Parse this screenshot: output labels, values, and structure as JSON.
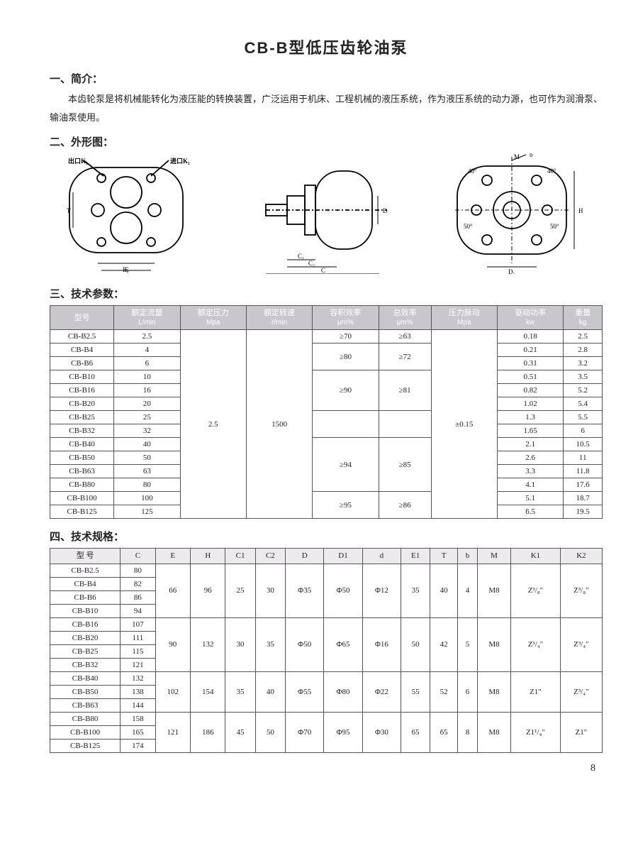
{
  "title": "CB-B型低压齿轮油泵",
  "section1": {
    "heading": "一、简介：",
    "text": "本齿轮泵是将机械能转化为液压能的转换装置，广泛运用于机床、工程机械的液压系统，作为液压系统的动力源，也可作为润滑泵、输油泵使用。"
  },
  "section2": {
    "heading": "二、外形图：",
    "labels": {
      "outlet": "出口K₂",
      "inlet": "进口K₁",
      "dims": [
        "E₁",
        "E",
        "D",
        "C₁",
        "C₂",
        "C",
        "M",
        "b",
        "D₁",
        "H",
        "T"
      ]
    }
  },
  "section3": {
    "heading": "三、技术参数：",
    "columns": [
      {
        "label": "型号",
        "sub": ""
      },
      {
        "label": "额定流量",
        "sub": "L/min"
      },
      {
        "label": "额定压力",
        "sub": "Mpa"
      },
      {
        "label": "额定转速",
        "sub": "r/min"
      },
      {
        "label": "容积效率",
        "sub": "μm%"
      },
      {
        "label": "总效率",
        "sub": "μm%"
      },
      {
        "label": "压力脉动",
        "sub": "Mpa"
      },
      {
        "label": "驱动功率",
        "sub": "kw"
      },
      {
        "label": "重量",
        "sub": "kg"
      }
    ],
    "pressure": "2.5",
    "speed": "1500",
    "pulse": "±0.15",
    "rows": [
      {
        "model": "CB-B2.5",
        "flow": "2.5",
        "vol": "≥70",
        "tot": "≥63",
        "pow": "0.18",
        "wt": "2.5",
        "volspan": 1,
        "totspan": 1
      },
      {
        "model": "CB-B4",
        "flow": "4",
        "vol": "≥80",
        "tot": "≥72",
        "pow": "0.21",
        "wt": "2.8",
        "volspan": 2,
        "totspan": 2
      },
      {
        "model": "CB-B6",
        "flow": "6",
        "pow": "0.31",
        "wt": "3.2"
      },
      {
        "model": "CB-B10",
        "flow": "10",
        "vol": "≥90",
        "tot": "≥81",
        "pow": "0.51",
        "wt": "3.5",
        "volspan": 3,
        "totspan": 3
      },
      {
        "model": "CB-B16",
        "flow": "16",
        "pow": "0.82",
        "wt": "5.2"
      },
      {
        "model": "CB-B20",
        "flow": "20",
        "pow": "1.02",
        "wt": "5.4"
      },
      {
        "model": "CB-B25",
        "flow": "25",
        "vol": "",
        "tot": "",
        "pow": "1.3",
        "wt": "5.5",
        "volspan": 2,
        "totspan": 2,
        "empty": true
      },
      {
        "model": "CB-B32",
        "flow": "32",
        "pow": "1.65",
        "wt": "6"
      },
      {
        "model": "CB-B40",
        "flow": "40",
        "vol": "≥94",
        "tot": "≥85",
        "pow": "2.1",
        "wt": "10.5",
        "volspan": 4,
        "totspan": 4
      },
      {
        "model": "CB-B50",
        "flow": "50",
        "pow": "2.6",
        "wt": "11"
      },
      {
        "model": "CB-B63",
        "flow": "63",
        "pow": "3.3",
        "wt": "11.8"
      },
      {
        "model": "CB-B80",
        "flow": "80",
        "pow": "4.1",
        "wt": "17.6"
      },
      {
        "model": "CB-B100",
        "flow": "100",
        "vol": "≥95",
        "tot": "≥86",
        "pow": "5.1",
        "wt": "18.7",
        "volspan": 2,
        "totspan": 2
      },
      {
        "model": "CB-B125",
        "flow": "125",
        "pow": "6.5",
        "wt": "19.5"
      }
    ]
  },
  "section4": {
    "heading": "四、技术规格：",
    "columns": [
      "型 号",
      "C",
      "E",
      "H",
      "C1",
      "C2",
      "D",
      "D1",
      "d",
      "E1",
      "T",
      "b",
      "M",
      "K1",
      "K2"
    ],
    "groups": [
      {
        "shared": {
          "E": "66",
          "H": "96",
          "C1": "25",
          "C2": "30",
          "D": "Φ35",
          "D1": "Φ50",
          "d": "Φ12",
          "E1": "35",
          "T": "40",
          "b": "4",
          "M": "M8",
          "K1": "Z³/₈″",
          "K2": "Z³/₈″"
        },
        "rows": [
          {
            "model": "CB-B2.5",
            "C": "80"
          },
          {
            "model": "CB-B4",
            "C": "82"
          },
          {
            "model": "CB-B6",
            "C": "86"
          },
          {
            "model": "CB-B10",
            "C": "94"
          }
        ]
      },
      {
        "shared": {
          "E": "90",
          "H": "132",
          "C1": "30",
          "C2": "35",
          "D": "Φ50",
          "D1": "Φ65",
          "d": "Φ16",
          "E1": "50",
          "T": "42",
          "b": "5",
          "M": "M8",
          "K1": "Z³/₄″",
          "K2": "Z³/₄″"
        },
        "rows": [
          {
            "model": "CB-B16",
            "C": "107"
          },
          {
            "model": "CB-B20",
            "C": "111"
          },
          {
            "model": "CB-B25",
            "C": "115"
          },
          {
            "model": "CB-B32",
            "C": "121"
          }
        ]
      },
      {
        "shared": {
          "E": "102",
          "H": "154",
          "C1": "35",
          "C2": "40",
          "D": "Φ55",
          "D1": "Φ80",
          "d": "Φ22",
          "E1": "55",
          "T": "52",
          "b": "6",
          "M": "M8",
          "K1": "Z1″",
          "K2": "Z³/₄″"
        },
        "rows": [
          {
            "model": "CB-B40",
            "C": "132"
          },
          {
            "model": "CB-B50",
            "C": "138"
          },
          {
            "model": "CB-B63",
            "C": "144"
          }
        ]
      },
      {
        "shared": {
          "E": "121",
          "H": "186",
          "C1": "45",
          "C2": "50",
          "D": "Φ70",
          "D1": "Φ95",
          "d": "Φ30",
          "E1": "65",
          "T": "65",
          "b": "8",
          "M": "M8",
          "K1": "Z1¹/₄″",
          "K2": "Z1″"
        },
        "rows": [
          {
            "model": "CB-B80",
            "C": "158"
          },
          {
            "model": "CB-B100",
            "C": "165"
          },
          {
            "model": "CB-B125",
            "C": "174"
          }
        ]
      }
    ]
  },
  "page_number": "8"
}
